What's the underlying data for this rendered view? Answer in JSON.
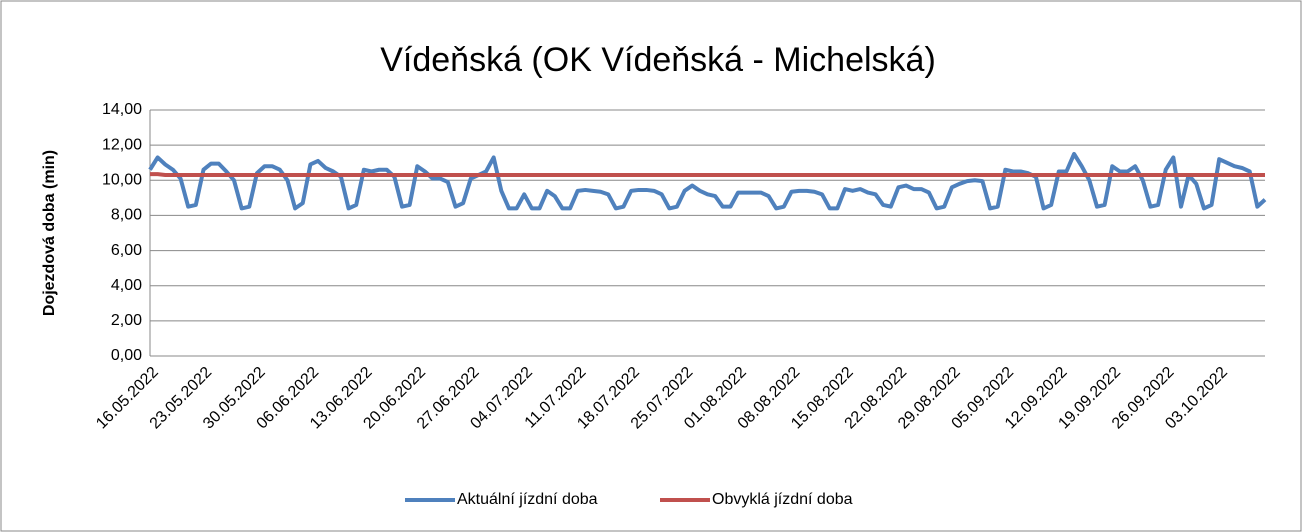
{
  "chart_data": {
    "type": "line",
    "title": "Vídeňská (OK Vídeňská - Michelská)",
    "y_label": "Dojezdová doba (min)",
    "categories": [
      "16.05.2022",
      null,
      null,
      null,
      null,
      null,
      null,
      "23.05.2022",
      null,
      null,
      null,
      null,
      null,
      null,
      "30.05.2022",
      null,
      null,
      null,
      null,
      null,
      null,
      "06.06.2022",
      null,
      null,
      null,
      null,
      null,
      null,
      "13.06.2022",
      null,
      null,
      null,
      null,
      null,
      null,
      "20.06.2022",
      null,
      null,
      null,
      null,
      null,
      null,
      "27.06.2022",
      null,
      null,
      null,
      null,
      null,
      null,
      "04.07.2022",
      null,
      null,
      null,
      null,
      null,
      null,
      "11.07.2022",
      null,
      null,
      null,
      null,
      null,
      null,
      "18.07.2022",
      null,
      null,
      null,
      null,
      null,
      null,
      "25.07.2022",
      null,
      null,
      null,
      null,
      null,
      null,
      "01.08.2022",
      null,
      null,
      null,
      null,
      null,
      null,
      "08.08.2022",
      null,
      null,
      null,
      null,
      null,
      null,
      "15.08.2022",
      null,
      null,
      null,
      null,
      null,
      null,
      "22.08.2022",
      null,
      null,
      null,
      null,
      null,
      null,
      "29.08.2022",
      null,
      null,
      null,
      null,
      null,
      null,
      "05.09.2022",
      null,
      null,
      null,
      null,
      null,
      null,
      "12.09.2022",
      null,
      null,
      null,
      null,
      null,
      null,
      "19.09.2022",
      null,
      null,
      null,
      null,
      null,
      null,
      "26.09.2022",
      null,
      null,
      null,
      null,
      null,
      null,
      "03.10.2022",
      null,
      null,
      null,
      null,
      null,
      null
    ],
    "series": [
      {
        "name": "Aktuální jízdní doba",
        "color": "#4f81bd",
        "values": [
          10.6,
          11.3,
          10.9,
          10.6,
          10.1,
          8.5,
          8.6,
          10.6,
          10.95,
          10.95,
          10.5,
          10.0,
          8.4,
          8.5,
          10.4,
          10.8,
          10.8,
          10.6,
          10.0,
          8.4,
          8.7,
          10.9,
          11.1,
          10.7,
          10.5,
          10.2,
          8.4,
          8.6,
          10.6,
          10.5,
          10.6,
          10.6,
          10.2,
          8.5,
          8.6,
          10.8,
          10.5,
          10.1,
          10.1,
          9.9,
          8.5,
          8.7,
          10.1,
          10.3,
          10.5,
          11.3,
          9.4,
          8.4,
          8.4,
          9.2,
          8.4,
          8.4,
          9.4,
          9.1,
          8.4,
          8.4,
          9.4,
          9.45,
          9.4,
          9.35,
          9.2,
          8.4,
          8.5,
          9.4,
          9.45,
          9.45,
          9.4,
          9.2,
          8.4,
          8.5,
          9.4,
          9.7,
          9.4,
          9.2,
          9.1,
          8.5,
          8.5,
          9.3,
          9.3,
          9.3,
          9.3,
          9.1,
          8.4,
          8.5,
          9.35,
          9.4,
          9.4,
          9.35,
          9.2,
          8.4,
          8.4,
          9.5,
          9.4,
          9.5,
          9.3,
          9.2,
          8.6,
          8.5,
          9.6,
          9.7,
          9.5,
          9.5,
          9.3,
          8.4,
          8.5,
          9.6,
          9.8,
          9.95,
          10.0,
          9.95,
          8.4,
          8.5,
          10.6,
          10.5,
          10.5,
          10.4,
          10.2,
          8.4,
          8.6,
          10.5,
          10.5,
          11.5,
          10.8,
          10.0,
          8.5,
          8.6,
          10.8,
          10.5,
          10.5,
          10.8,
          10.0,
          8.5,
          8.6,
          10.6,
          11.3,
          8.5,
          10.3,
          9.8,
          8.4,
          8.6,
          11.2,
          11.0,
          10.8,
          10.7,
          10.5,
          8.5,
          8.9
        ]
      },
      {
        "name": "Obvyklá jízdní doba",
        "color": "#c0504d",
        "values": [
          10.35,
          10.35,
          10.3,
          10.3,
          10.3,
          10.3,
          10.3,
          10.3,
          10.3,
          10.3,
          10.3,
          10.3,
          10.3,
          10.3,
          10.3,
          10.3,
          10.3,
          10.3,
          10.3,
          10.3,
          10.3,
          10.3,
          10.3,
          10.3,
          10.3,
          10.3,
          10.3,
          10.3,
          10.3,
          10.3,
          10.3,
          10.3,
          10.3,
          10.3,
          10.3,
          10.3,
          10.3,
          10.3,
          10.3,
          10.3,
          10.3,
          10.3,
          10.3,
          10.3,
          10.3,
          10.3,
          10.3,
          10.3,
          10.3,
          10.3,
          10.3,
          10.3,
          10.3,
          10.3,
          10.3,
          10.3,
          10.3,
          10.3,
          10.3,
          10.3,
          10.3,
          10.3,
          10.3,
          10.3,
          10.3,
          10.3,
          10.3,
          10.3,
          10.3,
          10.3,
          10.3,
          10.3,
          10.3,
          10.3,
          10.3,
          10.3,
          10.3,
          10.3,
          10.3,
          10.3,
          10.3,
          10.3,
          10.3,
          10.3,
          10.3,
          10.3,
          10.3,
          10.3,
          10.3,
          10.3,
          10.3,
          10.3,
          10.3,
          10.3,
          10.3,
          10.3,
          10.3,
          10.3,
          10.3,
          10.3,
          10.3,
          10.3,
          10.3,
          10.3,
          10.3,
          10.3,
          10.3,
          10.3,
          10.3,
          10.3,
          10.3,
          10.3,
          10.3,
          10.3,
          10.3,
          10.3,
          10.3,
          10.3,
          10.3,
          10.3,
          10.3,
          10.3,
          10.3,
          10.3,
          10.3,
          10.3,
          10.3,
          10.3,
          10.3,
          10.3,
          10.3,
          10.3,
          10.3,
          10.3,
          10.3,
          10.3,
          10.3,
          10.3,
          10.3,
          10.3,
          10.3,
          10.3,
          10.3,
          10.3,
          10.3,
          10.3,
          10.3
        ]
      }
    ],
    "ylim": [
      0,
      14
    ],
    "yticks": [
      {
        "value": 0,
        "label": "0,00"
      },
      {
        "value": 2,
        "label": "2,00"
      },
      {
        "value": 4,
        "label": "4,00"
      },
      {
        "value": 6,
        "label": "6,00"
      },
      {
        "value": 8,
        "label": "8,00"
      },
      {
        "value": 10,
        "label": "10,00"
      },
      {
        "value": 12,
        "label": "12,00"
      },
      {
        "value": 14,
        "label": "14,00"
      }
    ],
    "grid": true,
    "legend": "bottom"
  }
}
